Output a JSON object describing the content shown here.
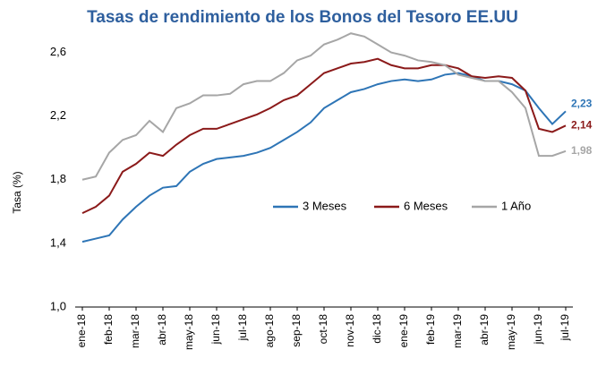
{
  "chart_data": {
    "type": "line",
    "title": "Tasas de rendimiento de los Bonos del Tesoro EE.UU",
    "y_label": "Tasa (%)",
    "categories": [
      "ene-18",
      null,
      "feb-18",
      null,
      "mar-18",
      null,
      "abr-18",
      null,
      "may-18",
      null,
      "jun-18",
      null,
      "jul-18",
      null,
      "ago-18",
      null,
      "sep-18",
      null,
      "oct-18",
      null,
      "nov-18",
      null,
      "dic-18",
      null,
      "ene-19",
      null,
      "feb-19",
      null,
      "mar-19",
      null,
      "abr-19",
      null,
      "may-19",
      null,
      "jun-19",
      null,
      "jul-19"
    ],
    "series": [
      {
        "name": "3 Meses",
        "color": "#2e75b6",
        "values": [
          1.41,
          1.43,
          1.45,
          1.55,
          1.63,
          1.7,
          1.75,
          1.76,
          1.85,
          1.9,
          1.93,
          1.94,
          1.95,
          1.97,
          2.0,
          2.05,
          2.1,
          2.16,
          2.25,
          2.3,
          2.35,
          2.37,
          2.4,
          2.42,
          2.43,
          2.42,
          2.43,
          2.46,
          2.47,
          2.45,
          2.42,
          2.42,
          2.4,
          2.36,
          2.25,
          2.15,
          2.23
        ],
        "value_labels": [
          null,
          null,
          null,
          null,
          null,
          null,
          null,
          null,
          null,
          null,
          null,
          null,
          null,
          null,
          null,
          null,
          null,
          null,
          null,
          null,
          null,
          null,
          null,
          null,
          null,
          null,
          null,
          null,
          null,
          null,
          null,
          null,
          null,
          null,
          null,
          null,
          "2,23"
        ]
      },
      {
        "name": "6 Meses",
        "color": "#8b1a1a",
        "values": [
          1.59,
          1.63,
          1.7,
          1.85,
          1.9,
          1.97,
          1.95,
          2.02,
          2.08,
          2.12,
          2.12,
          2.15,
          2.18,
          2.21,
          2.25,
          2.3,
          2.33,
          2.4,
          2.47,
          2.5,
          2.53,
          2.54,
          2.56,
          2.52,
          2.5,
          2.5,
          2.52,
          2.52,
          2.5,
          2.45,
          2.44,
          2.45,
          2.44,
          2.36,
          2.12,
          2.1,
          2.14
        ],
        "value_labels": [
          null,
          null,
          null,
          null,
          null,
          null,
          null,
          null,
          null,
          null,
          null,
          null,
          null,
          null,
          null,
          null,
          null,
          null,
          null,
          null,
          null,
          null,
          null,
          null,
          null,
          null,
          null,
          null,
          null,
          null,
          null,
          null,
          null,
          null,
          null,
          null,
          "2,14"
        ]
      },
      {
        "name": "1 Año",
        "color": "#a6a6a6",
        "values": [
          1.8,
          1.82,
          1.97,
          2.05,
          2.08,
          2.17,
          2.1,
          2.25,
          2.28,
          2.33,
          2.33,
          2.34,
          2.4,
          2.42,
          2.42,
          2.47,
          2.55,
          2.58,
          2.65,
          2.68,
          2.72,
          2.7,
          2.65,
          2.6,
          2.58,
          2.55,
          2.54,
          2.52,
          2.46,
          2.44,
          2.42,
          2.42,
          2.35,
          2.25,
          1.95,
          1.95,
          1.98
        ],
        "value_labels": [
          null,
          null,
          null,
          null,
          null,
          null,
          null,
          null,
          null,
          null,
          null,
          null,
          null,
          null,
          null,
          null,
          null,
          null,
          null,
          null,
          null,
          null,
          null,
          null,
          null,
          null,
          null,
          null,
          null,
          null,
          null,
          null,
          null,
          null,
          null,
          null,
          "1,98"
        ]
      }
    ],
    "ylim": [
      1.0,
      2.8
    ],
    "yticks": [
      {
        "value": 1.0,
        "label": "1,0"
      },
      {
        "value": 1.4,
        "label": "1,4"
      },
      {
        "value": 1.8,
        "label": "1,8"
      },
      {
        "value": 2.2,
        "label": "2,2"
      },
      {
        "value": 2.6,
        "label": "2,6"
      }
    ],
    "legend": "center",
    "grid": false
  }
}
